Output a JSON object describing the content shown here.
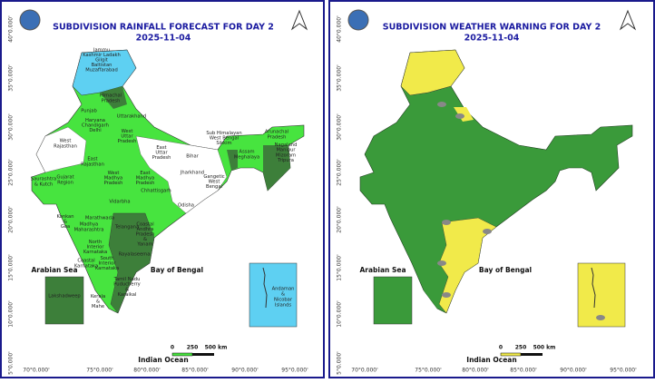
{
  "panels": [
    {
      "title": "SUBDIVISION RAINFALL FORECAST FOR DAY 2",
      "date": "2025-11-04",
      "regions": [
        [
          "Jammu",
          "Kashmir Ladakh",
          "Gilgit",
          "Baltistan",
          "Muzaffarabad"
        ],
        [
          "Himachal",
          "Pradesh"
        ],
        [
          "Punjab"
        ],
        [
          "Uttarakhand"
        ],
        [
          "Haryana",
          "Chandigarh",
          "Delhi"
        ],
        [
          "West",
          "Uttar",
          "Pradesh"
        ],
        [
          "East",
          "Uttar",
          "Pradesh"
        ],
        [
          "Bihar"
        ],
        [
          "Sub Himalayan",
          "West Bengal",
          "Sikkim"
        ],
        [
          "Arunachal",
          "Pradesh"
        ],
        [
          "Assam",
          "Meghalaya"
        ],
        [
          "Nagaland",
          "Manipur",
          "Mizoram",
          "Tripura"
        ],
        [
          "West",
          "Rajasthan"
        ],
        [
          "East",
          "Rajasthan"
        ],
        [
          "West",
          "Madhya",
          "Pradesh"
        ],
        [
          "East",
          "Madhya",
          "Pradesh"
        ],
        [
          "Gangetic",
          "West",
          "Bengal"
        ],
        [
          "Jharkhand"
        ],
        [
          "Odisha"
        ],
        [
          "Chhattisgarh"
        ],
        [
          "Gujarat",
          "Region"
        ],
        [
          "Saurashtra",
          "& Kutch"
        ],
        [
          "Vidarbha"
        ],
        [
          "Konkan",
          "&",
          "Goa"
        ],
        [
          "Madhya",
          "Maharashtra"
        ],
        [
          "Marathwada"
        ],
        [
          "Telangana"
        ],
        [
          "Coastal",
          "Andhra",
          "Pradesh",
          "&",
          "Yanam"
        ],
        [
          "North",
          "Interior",
          "Karnataka"
        ],
        [
          "Rayalaseema"
        ],
        [
          "Coastal",
          "Karnataka"
        ],
        [
          "South",
          "Interior",
          "Karnataka"
        ],
        [
          "Tamil Nadu",
          "Puducherry",
          "&",
          "Karaikal"
        ],
        [
          "Kerala",
          "&",
          "Mahe"
        ]
      ],
      "lakshadweep": "Lakshadweep",
      "andaman": [
        "Andaman",
        "&",
        "Nicobar",
        "Islands"
      ]
    },
    {
      "title": "SUBDIVISION WEATHER WARNING FOR DAY 2",
      "date": "2025-11-04"
    }
  ],
  "lat_labels": [
    "40°0.000'",
    "35°0.000'",
    "30°0.000'",
    "25°0.000'",
    "20°0.000'",
    "15°0.000'",
    "10°0.000'",
    "5°0.000'"
  ],
  "lon_labels": [
    "70°0.000'",
    "75°0.000'",
    "80°0.000'",
    "85°0.000'",
    "90°0.000'",
    "95°0.000'"
  ],
  "seas": [
    "Arabian Sea",
    "Bay of Bengal",
    "Indian Ocean"
  ],
  "scale": [
    "0",
    "250",
    "500 km"
  ]
}
